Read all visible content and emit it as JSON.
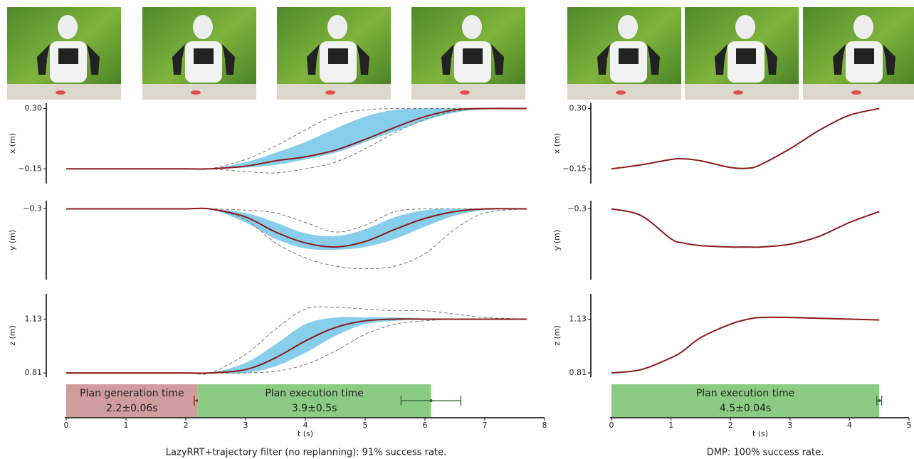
{
  "chart_data": [
    {
      "type": "line",
      "caption": "LazyRRT+trajectory filter (no replanning): 91% success rate.",
      "xlabel": "t (s)",
      "xlim": [
        0,
        8
      ],
      "xticks": [
        0,
        1,
        2,
        3,
        4,
        5,
        6,
        7,
        8
      ],
      "x": [
        0,
        1,
        2,
        2.4,
        3,
        3.5,
        4,
        4.5,
        5,
        5.5,
        6,
        6.5,
        7,
        7.7
      ],
      "subplots": [
        {
          "ylabel": "x (m)",
          "ylim": [
            -0.26,
            0.34
          ],
          "yticks": [
            {
              "value": 0.3,
              "label": "0.30"
            },
            {
              "value": -0.15,
              "label": "−0.15"
            }
          ],
          "band": {
            "color": "#87ceeb",
            "low": [
              -0.15,
              -0.15,
              -0.15,
              -0.15,
              -0.14,
              -0.12,
              -0.08,
              -0.03,
              0.05,
              0.13,
              0.21,
              0.27,
              0.295,
              0.3
            ],
            "high": [
              -0.15,
              -0.15,
              -0.15,
              -0.15,
              -0.1,
              -0.03,
              0.05,
              0.15,
              0.24,
              0.29,
              0.3,
              0.3,
              0.3,
              0.3
            ]
          },
          "series": [
            {
              "color": "#777777",
              "dashed": true,
              "values": [
                -0.15,
                -0.15,
                -0.15,
                -0.15,
                -0.08,
                0.02,
                0.14,
                0.25,
                0.29,
                0.3,
                0.3,
                0.3,
                0.3,
                0.3
              ]
            },
            {
              "color": "#777777",
              "dashed": true,
              "values": [
                -0.15,
                -0.15,
                -0.15,
                -0.15,
                -0.17,
                -0.18,
                -0.15,
                -0.1,
                0.0,
                0.12,
                0.22,
                0.28,
                0.3,
                0.3
              ]
            },
            {
              "color": "#8b1a1a",
              "values": [
                -0.15,
                -0.15,
                -0.15,
                -0.15,
                -0.13,
                -0.09,
                -0.06,
                -0.01,
                0.07,
                0.16,
                0.24,
                0.29,
                0.3,
                0.3
              ]
            }
          ]
        },
        {
          "ylabel": "y (m)",
          "ylim": [
            -0.82,
            -0.24
          ],
          "yticks": [
            {
              "value": -0.3,
              "label": "−0.3"
            }
          ],
          "band": {
            "color": "#87ceeb",
            "low": [
              -0.3,
              -0.3,
              -0.3,
              -0.3,
              -0.4,
              -0.52,
              -0.59,
              -0.6,
              -0.58,
              -0.52,
              -0.43,
              -0.35,
              -0.31,
              -0.3
            ],
            "high": [
              -0.3,
              -0.3,
              -0.3,
              -0.3,
              -0.33,
              -0.4,
              -0.48,
              -0.5,
              -0.45,
              -0.36,
              -0.31,
              -0.3,
              -0.3,
              -0.3
            ]
          },
          "series": [
            {
              "color": "#777777",
              "dashed": true,
              "values": [
                -0.3,
                -0.3,
                -0.3,
                -0.3,
                -0.38,
                -0.55,
                -0.66,
                -0.72,
                -0.74,
                -0.72,
                -0.63,
                -0.45,
                -0.33,
                -0.3
              ]
            },
            {
              "color": "#777777",
              "dashed": true,
              "values": [
                -0.3,
                -0.3,
                -0.3,
                -0.3,
                -0.31,
                -0.33,
                -0.4,
                -0.47,
                -0.42,
                -0.32,
                -0.3,
                -0.3,
                -0.3,
                -0.3
              ]
            },
            {
              "color": "#8b1a1a",
              "values": [
                -0.3,
                -0.3,
                -0.3,
                -0.3,
                -0.36,
                -0.47,
                -0.55,
                -0.58,
                -0.54,
                -0.45,
                -0.37,
                -0.32,
                -0.3,
                -0.3
              ]
            }
          ]
        },
        {
          "ylabel": "z (m)",
          "ylim": [
            0.785,
            1.28
          ],
          "yticks": [
            1.13,
            0.81
          ],
          "band": {
            "color": "#87ceeb",
            "low": [
              0.81,
              0.81,
              0.81,
              0.81,
              0.81,
              0.85,
              0.93,
              1.03,
              1.1,
              1.12,
              1.13,
              1.13,
              1.13,
              1.13
            ],
            "high": [
              0.81,
              0.81,
              0.81,
              0.81,
              0.87,
              0.98,
              1.1,
              1.14,
              1.14,
              1.14,
              1.135,
              1.13,
              1.13,
              1.13
            ]
          },
          "series": [
            {
              "color": "#777777",
              "dashed": true,
              "values": [
                0.81,
                0.81,
                0.81,
                0.81,
                0.92,
                1.07,
                1.19,
                1.2,
                1.19,
                1.18,
                1.18,
                1.16,
                1.14,
                1.13
              ]
            },
            {
              "color": "#777777",
              "dashed": true,
              "values": [
                0.81,
                0.81,
                0.81,
                0.81,
                0.81,
                0.82,
                0.86,
                0.94,
                1.04,
                1.1,
                1.12,
                1.13,
                1.13,
                1.13
              ]
            },
            {
              "color": "#8b1a1a",
              "values": [
                0.81,
                0.81,
                0.81,
                0.81,
                0.83,
                0.9,
                1.0,
                1.08,
                1.12,
                1.13,
                1.13,
                1.13,
                1.13,
                1.13
              ]
            }
          ]
        }
      ],
      "timeline": [
        {
          "label": "Plan generation time",
          "value": 2.2,
          "value_label": "2.2±0.06s",
          "error": 0.06,
          "color": "#cf9d9d",
          "error_color": "#8b1a1a"
        },
        {
          "label": "Plan execution time",
          "value": 3.9,
          "value_label": "3.9±0.5s",
          "error": 0.5,
          "color": "#8ccb84",
          "error_color": "#2e5e2e"
        }
      ]
    },
    {
      "type": "line",
      "caption": "DMP: 100% success rate.",
      "xlabel": "t (s)",
      "xlim": [
        0,
        5
      ],
      "xticks": [
        0,
        1,
        2,
        3,
        4,
        5
      ],
      "x": [
        0,
        0.5,
        1,
        1.2,
        1.5,
        2,
        2.3,
        2.5,
        3,
        3.5,
        4,
        4.5
      ],
      "subplots": [
        {
          "ylabel": "x (m)",
          "ylim": [
            -0.26,
            0.34
          ],
          "yticks": [
            {
              "value": 0.3,
              "label": "0.30"
            },
            {
              "value": -0.15,
              "label": "−0.15"
            }
          ],
          "series": [
            {
              "color": "#8b1a1a",
              "values": [
                -0.15,
                -0.12,
                -0.08,
                -0.075,
                -0.09,
                -0.14,
                -0.145,
                -0.12,
                0.0,
                0.14,
                0.25,
                0.3
              ]
            }
          ]
        },
        {
          "ylabel": "y (m)",
          "ylim": [
            -0.82,
            -0.24
          ],
          "yticks": [
            {
              "value": -0.3,
              "label": "−0.3"
            }
          ],
          "series": [
            {
              "color": "#8b1a1a",
              "values": [
                -0.3,
                -0.35,
                -0.52,
                -0.55,
                -0.57,
                -0.58,
                -0.58,
                -0.58,
                -0.56,
                -0.5,
                -0.4,
                -0.32
              ]
            }
          ]
        },
        {
          "ylabel": "z (m)",
          "ylim": [
            0.785,
            1.28
          ],
          "yticks": [
            1.13,
            0.81
          ],
          "series": [
            {
              "color": "#8b1a1a",
              "values": [
                0.81,
                0.83,
                0.9,
                0.94,
                1.02,
                1.1,
                1.13,
                1.14,
                1.14,
                1.135,
                1.13,
                1.125
              ]
            }
          ]
        }
      ],
      "timeline": [
        {
          "label": "Plan execution time",
          "value": 4.5,
          "value_label": "4.5±0.04s",
          "error": 0.04,
          "color": "#8ccb84",
          "error_color": "#2e5e2e"
        }
      ]
    }
  ]
}
